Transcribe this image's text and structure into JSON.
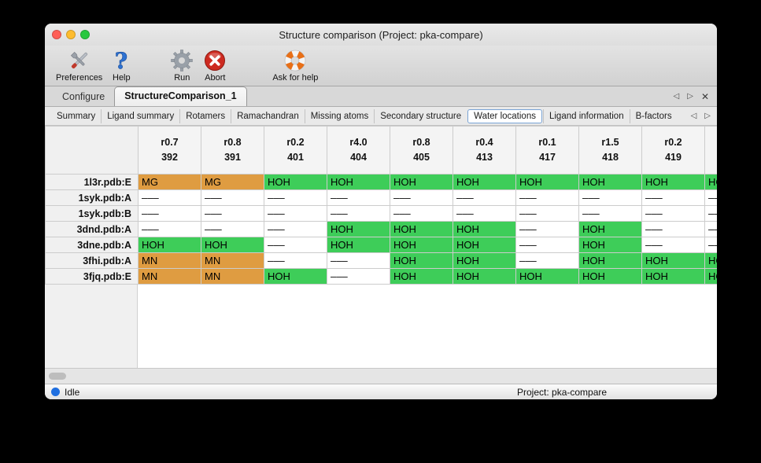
{
  "window": {
    "title": "Structure comparison (Project: pka-compare)"
  },
  "toolbar": {
    "items": [
      {
        "label": "Preferences",
        "icon": "preferences-tools-icon"
      },
      {
        "label": "Help",
        "icon": "help-question-icon"
      },
      {
        "label": "Run",
        "icon": "run-gear-icon"
      },
      {
        "label": "Abort",
        "icon": "abort-icon"
      },
      {
        "label": "Ask for help",
        "icon": "lifebuoy-icon"
      }
    ]
  },
  "tabbar": {
    "tabs": [
      {
        "label": "Configure",
        "active": false
      },
      {
        "label": "StructureComparison_1",
        "active": true
      }
    ],
    "prev_glyph": "◁",
    "next_glyph": "▷",
    "close_glyph": "✕"
  },
  "subtabbar": {
    "tabs": [
      {
        "label": "Summary",
        "active": false
      },
      {
        "label": "Ligand summary",
        "active": false
      },
      {
        "label": "Rotamers",
        "active": false
      },
      {
        "label": "Ramachandran",
        "active": false
      },
      {
        "label": "Missing atoms",
        "active": false
      },
      {
        "label": "Secondary structure",
        "active": false
      },
      {
        "label": "Water locations",
        "active": true
      },
      {
        "label": "Ligand information",
        "active": false
      },
      {
        "label": "B-factors",
        "active": false
      }
    ],
    "prev_glyph": "◁",
    "next_glyph": "▷"
  },
  "colors": {
    "green": "#3ecd59",
    "orange": "#df9c41",
    "status_dot": "#1f6fe0"
  },
  "table": {
    "columns": [
      {
        "line1": "r0.7",
        "line2": "392"
      },
      {
        "line1": "r0.8",
        "line2": "391"
      },
      {
        "line1": "r0.2",
        "line2": "401"
      },
      {
        "line1": "r4.0",
        "line2": "404"
      },
      {
        "line1": "r0.8",
        "line2": "405"
      },
      {
        "line1": "r0.4",
        "line2": "413"
      },
      {
        "line1": "r0.1",
        "line2": "417"
      },
      {
        "line1": "r1.5",
        "line2": "418"
      },
      {
        "line1": "r0.2",
        "line2": "419"
      },
      {
        "line1": "",
        "line2": ""
      }
    ],
    "rows": [
      {
        "label": "1l3r.pdb:E",
        "cells": [
          {
            "text": "MG",
            "color": "orange"
          },
          {
            "text": "MG",
            "color": "orange"
          },
          {
            "text": "HOH",
            "color": "green"
          },
          {
            "text": "HOH",
            "color": "green"
          },
          {
            "text": "HOH",
            "color": "green"
          },
          {
            "text": "HOH",
            "color": "green"
          },
          {
            "text": "HOH",
            "color": "green"
          },
          {
            "text": "HOH",
            "color": "green"
          },
          {
            "text": "HOH",
            "color": "green"
          },
          {
            "text": "HOH",
            "color": "green"
          }
        ]
      },
      {
        "label": "1syk.pdb:A",
        "cells": [
          {
            "text": "–––",
            "color": "none"
          },
          {
            "text": "–––",
            "color": "none"
          },
          {
            "text": "–––",
            "color": "none"
          },
          {
            "text": "–––",
            "color": "none"
          },
          {
            "text": "–––",
            "color": "none"
          },
          {
            "text": "–––",
            "color": "none"
          },
          {
            "text": "–––",
            "color": "none"
          },
          {
            "text": "–––",
            "color": "none"
          },
          {
            "text": "–––",
            "color": "none"
          },
          {
            "text": "–––",
            "color": "none"
          }
        ]
      },
      {
        "label": "1syk.pdb:B",
        "cells": [
          {
            "text": "–––",
            "color": "none"
          },
          {
            "text": "–––",
            "color": "none"
          },
          {
            "text": "–––",
            "color": "none"
          },
          {
            "text": "–––",
            "color": "none"
          },
          {
            "text": "–––",
            "color": "none"
          },
          {
            "text": "–––",
            "color": "none"
          },
          {
            "text": "–––",
            "color": "none"
          },
          {
            "text": "–––",
            "color": "none"
          },
          {
            "text": "–––",
            "color": "none"
          },
          {
            "text": "–––",
            "color": "none"
          }
        ]
      },
      {
        "label": "3dnd.pdb:A",
        "cells": [
          {
            "text": "–––",
            "color": "none"
          },
          {
            "text": "–––",
            "color": "none"
          },
          {
            "text": "–––",
            "color": "none"
          },
          {
            "text": "HOH",
            "color": "green"
          },
          {
            "text": "HOH",
            "color": "green"
          },
          {
            "text": "HOH",
            "color": "green"
          },
          {
            "text": "–––",
            "color": "none"
          },
          {
            "text": "HOH",
            "color": "green"
          },
          {
            "text": "–––",
            "color": "none"
          },
          {
            "text": "–––",
            "color": "none"
          }
        ]
      },
      {
        "label": "3dne.pdb:A",
        "cells": [
          {
            "text": "HOH",
            "color": "green"
          },
          {
            "text": "HOH",
            "color": "green"
          },
          {
            "text": "–––",
            "color": "none"
          },
          {
            "text": "HOH",
            "color": "green"
          },
          {
            "text": "HOH",
            "color": "green"
          },
          {
            "text": "HOH",
            "color": "green"
          },
          {
            "text": "–––",
            "color": "none"
          },
          {
            "text": "HOH",
            "color": "green"
          },
          {
            "text": "–––",
            "color": "none"
          },
          {
            "text": "–––",
            "color": "none"
          }
        ]
      },
      {
        "label": "3fhi.pdb:A",
        "cells": [
          {
            "text": "MN",
            "color": "orange"
          },
          {
            "text": "MN",
            "color": "orange"
          },
          {
            "text": "–––",
            "color": "none"
          },
          {
            "text": "–––",
            "color": "none"
          },
          {
            "text": "HOH",
            "color": "green"
          },
          {
            "text": "HOH",
            "color": "green"
          },
          {
            "text": "–––",
            "color": "none"
          },
          {
            "text": "HOH",
            "color": "green"
          },
          {
            "text": "HOH",
            "color": "green"
          },
          {
            "text": "HOH",
            "color": "green"
          }
        ]
      },
      {
        "label": "3fjq.pdb:E",
        "cells": [
          {
            "text": "MN",
            "color": "orange"
          },
          {
            "text": "MN",
            "color": "orange"
          },
          {
            "text": "HOH",
            "color": "green"
          },
          {
            "text": "–––",
            "color": "none"
          },
          {
            "text": "HOH",
            "color": "green"
          },
          {
            "text": "HOH",
            "color": "green"
          },
          {
            "text": "HOH",
            "color": "green"
          },
          {
            "text": "HOH",
            "color": "green"
          },
          {
            "text": "HOH",
            "color": "green"
          },
          {
            "text": "HOH",
            "color": "green"
          }
        ]
      }
    ]
  },
  "statusbar": {
    "status": "Idle",
    "project": "Project: pka-compare"
  }
}
